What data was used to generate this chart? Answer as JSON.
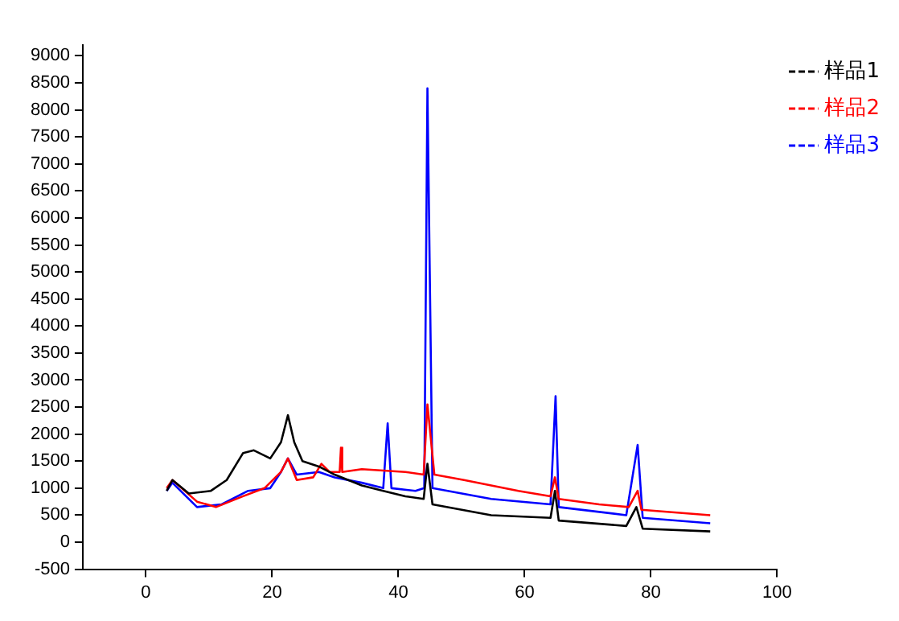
{
  "chart_data": {
    "type": "line",
    "xlim": [
      -10,
      100
    ],
    "xticks": [
      0,
      20,
      40,
      60,
      80,
      100
    ],
    "ylim": [
      -500,
      9200
    ],
    "yticks": [
      -500,
      0,
      500,
      1000,
      1500,
      2000,
      2500,
      3000,
      3500,
      4000,
      4500,
      5000,
      5500,
      6000,
      6500,
      7000,
      7500,
      8000,
      8500,
      9000
    ],
    "grid": false,
    "legend": "top right",
    "marker": "none",
    "line_style": "solid",
    "series": [
      {
        "name": "样品1",
        "color": "#000000",
        "x": [
          3.3,
          4.2,
          6.8,
          10.3,
          12.8,
          15.4,
          17.1,
          19.7,
          21.4,
          22.5,
          23.5,
          24.8,
          27.4,
          29.9,
          34.2,
          37.6,
          41.1,
          44.0,
          44.6,
          45.4,
          54.7,
          64.1,
          64.8,
          65.4,
          76.1,
          77.7,
          78.7,
          89.4
        ],
        "values": [
          950,
          1150,
          900,
          950,
          1150,
          1650,
          1700,
          1550,
          1850,
          2350,
          1850,
          1500,
          1400,
          1250,
          1050,
          950,
          850,
          800,
          1450,
          700,
          500,
          450,
          950,
          400,
          300,
          650,
          250,
          200
        ]
      },
      {
        "name": "样品2",
        "color": "#ff0000",
        "x": [
          3.3,
          4.2,
          8.1,
          11.1,
          15.4,
          18.8,
          21.4,
          22.5,
          23.9,
          26.5,
          27.8,
          29.1,
          30.7,
          30.9,
          31.1,
          34.2,
          41.1,
          44.0,
          44.6,
          45.7,
          50.4,
          59.0,
          64.1,
          64.8,
          65.4,
          71.8,
          76.5,
          77.9,
          78.5,
          89.4
        ],
        "values": [
          1000,
          1150,
          750,
          650,
          850,
          1000,
          1300,
          1550,
          1150,
          1200,
          1450,
          1300,
          1300,
          1750,
          1300,
          1350,
          1300,
          1250,
          2550,
          1250,
          1150,
          950,
          850,
          1200,
          800,
          700,
          650,
          950,
          600,
          500
        ]
      },
      {
        "name": "样品3",
        "color": "#0000ff",
        "x": [
          3.3,
          4.2,
          8.1,
          12.0,
          16.2,
          19.7,
          21.4,
          22.5,
          23.9,
          27.4,
          29.9,
          34.2,
          37.6,
          38.3,
          38.9,
          42.7,
          44.1,
          44.6,
          45.4,
          54.7,
          64.1,
          64.9,
          65.4,
          76.1,
          77.9,
          78.7,
          89.4
        ],
        "values": [
          950,
          1100,
          650,
          700,
          950,
          1000,
          1300,
          1550,
          1250,
          1300,
          1200,
          1100,
          1000,
          2200,
          1000,
          950,
          1000,
          8400,
          1000,
          800,
          700,
          2700,
          650,
          500,
          1800,
          450,
          350
        ]
      }
    ]
  }
}
